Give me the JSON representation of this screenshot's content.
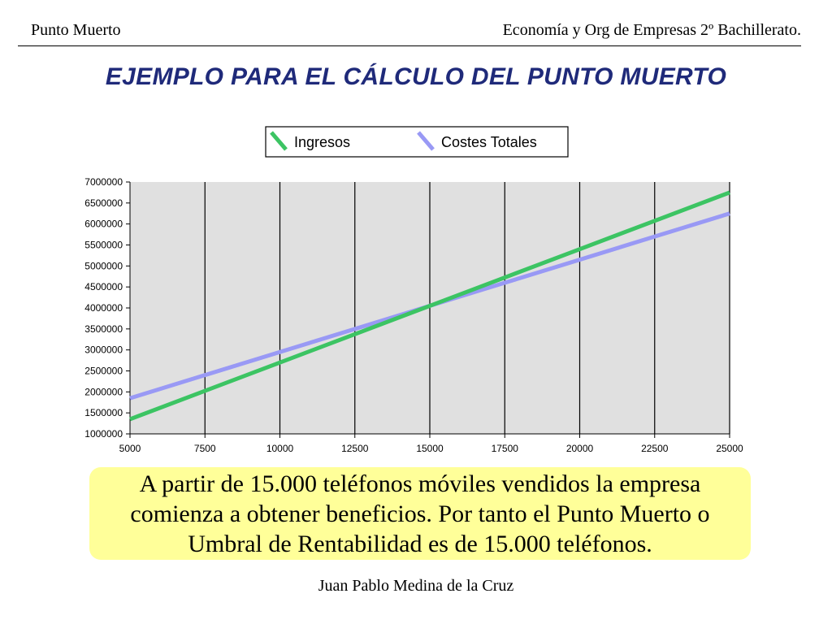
{
  "header": {
    "left": "Punto Muerto",
    "right": "Economía y Org de Empresas 2º Bachillerato."
  },
  "title": "EJEMPLO PARA EL CÁLCULO DEL PUNTO MUERTO",
  "chart_data": {
    "type": "line",
    "x": [
      5000,
      7500,
      10000,
      12500,
      15000,
      17500,
      20000,
      22500,
      25000
    ],
    "series": [
      {
        "name": "Ingresos",
        "color": "#3cc463",
        "values": [
          1350000,
          2025000,
          2700000,
          3375000,
          4050000,
          4725000,
          5400000,
          6075000,
          6750000
        ]
      },
      {
        "name": "Costes Totales",
        "color": "#9999f5",
        "values": [
          1850000,
          2400000,
          2950000,
          3500000,
          4050000,
          4600000,
          5150000,
          5700000,
          6250000
        ]
      }
    ],
    "xlim": [
      5000,
      25000
    ],
    "ylim": [
      1000000,
      7000000
    ],
    "xticks": [
      5000,
      7500,
      10000,
      12500,
      15000,
      17500,
      20000,
      22500,
      25000
    ],
    "yticks": [
      1000000,
      1500000,
      2000000,
      2500000,
      3000000,
      3500000,
      4000000,
      4500000,
      5000000,
      5500000,
      6000000,
      6500000,
      7000000
    ],
    "grid": "vertical",
    "legend_position": "top-center",
    "background": "#e0e0e0"
  },
  "callout": {
    "text": "A partir de 15.000 teléfonos móviles vendidos la empresa comienza a obtener beneficios. Por tanto el Punto Muerto o Umbral de Rentabilidad es de 15.000 teléfonos."
  },
  "footer": {
    "author": "Juan Pablo Medina de la Cruz"
  }
}
